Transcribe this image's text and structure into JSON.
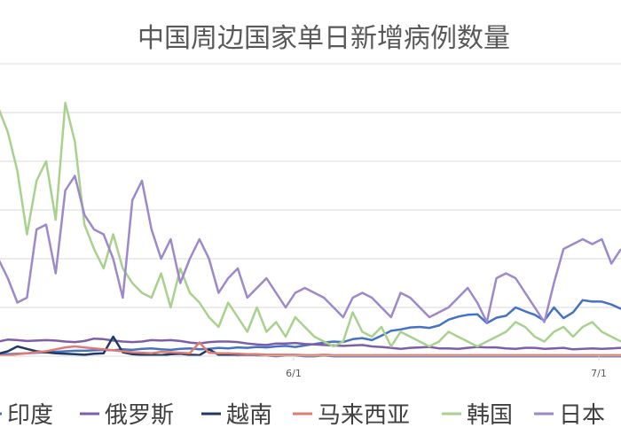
{
  "chart_data": {
    "type": "line",
    "title": "中国周边国家单日新增病例数量",
    "xlabel": "",
    "ylabel": "",
    "x_tick_labels": [
      "6/1",
      "7/1"
    ],
    "grid": true,
    "legend_position": "bottom",
    "y_axis_labels_visible": false,
    "series": [
      {
        "name": "印度",
        "color": "#4472C4",
        "values": [
          0.3,
          0.4,
          0.5,
          0.6,
          0.7,
          0.8,
          0.9,
          1.0,
          1.1,
          1.1,
          1.2,
          1.3,
          1.2,
          1.4,
          1.3,
          1.5,
          1.6,
          1.4,
          1.3,
          1.5,
          1.6,
          1.4,
          1.5,
          1.7,
          1.6,
          1.8,
          1.7,
          1.9,
          1.8,
          2.0,
          2.1,
          1.9,
          2.2,
          2.5,
          2.8,
          3.0,
          2.9,
          3.5,
          3.7,
          3.3,
          4.2,
          5.2,
          5.5,
          5.9,
          6.0,
          5.8,
          6.3,
          7.5,
          8.1,
          8.5,
          8.6,
          6.8,
          7.9,
          8.3,
          10.0,
          9.2,
          8.5,
          7.3,
          10.0,
          7.8,
          9.0,
          11.5,
          11.2,
          11.2,
          10.6,
          9.7
        ]
      },
      {
        "name": "俄罗斯",
        "color": "#7E5EA8",
        "values": [
          3.0,
          3.4,
          3.3,
          3.1,
          3.2,
          3.3,
          3.2,
          3.0,
          2.9,
          3.1,
          3.6,
          3.5,
          3.2,
          3.0,
          2.9,
          3.0,
          3.3,
          3.2,
          3.3,
          3.1,
          2.8,
          2.6,
          2.9,
          3.0,
          3.0,
          2.9,
          2.6,
          2.4,
          2.3,
          2.6,
          2.6,
          2.7,
          2.5,
          2.4,
          2.3,
          2.2,
          2.1,
          2.2,
          2.3,
          2.0,
          1.9,
          1.7,
          1.5,
          1.7,
          1.8,
          1.9,
          1.6,
          1.6,
          1.5,
          1.7,
          1.9,
          1.8,
          1.8,
          1.6,
          1.5,
          1.7,
          1.7,
          1.5,
          1.6,
          1.7,
          1.4,
          1.5,
          1.6,
          1.5,
          1.6,
          1.7
        ]
      },
      {
        "name": "越南",
        "color": "#203864",
        "values": [
          0.5,
          1.0,
          2.0,
          1.5,
          1.0,
          0.8,
          0.6,
          0.5,
          0.4,
          0.3,
          0.5,
          0.6,
          4.0,
          0.8,
          0.4,
          0.3,
          0.3,
          0.2,
          0.4,
          0.5,
          0.3,
          0.2,
          1.4,
          0.3,
          0.2,
          0.1,
          0.2,
          0.1,
          0.1,
          0.0,
          0.1,
          0.1,
          0.0,
          0.0,
          0.1,
          0.0,
          0.0,
          0.0,
          0.0,
          0.0,
          0.0,
          0.0,
          0.0,
          0.0,
          0.0,
          0.0,
          0.0,
          0.0,
          0.0,
          0.0,
          0.0,
          0.0,
          0.0,
          0.0,
          0.0,
          0.0,
          0.0,
          0.0,
          0.0,
          0.0,
          0.0,
          0.0,
          0.0,
          0.0,
          0.0,
          0.0
        ]
      },
      {
        "name": "马来西亚",
        "color": "#E07B74",
        "values": [
          0.1,
          0.2,
          0.4,
          0.6,
          0.8,
          1.0,
          1.4,
          1.8,
          2.0,
          1.8,
          1.6,
          1.4,
          1.2,
          1.0,
          0.8,
          0.7,
          0.6,
          0.9,
          0.8,
          0.7,
          0.6,
          2.8,
          0.7,
          0.6,
          0.6,
          0.5,
          0.4,
          0.4,
          0.3,
          0.3,
          0.3,
          0.3,
          0.2,
          0.2,
          0.3,
          0.2,
          0.2,
          0.2,
          0.2,
          0.2,
          0.2,
          0.2,
          0.2,
          0.2,
          0.2,
          0.2,
          0.2,
          0.2,
          0.2,
          0.2,
          0.2,
          0.2,
          0.2,
          0.2,
          0.2,
          0.2,
          0.2,
          0.2,
          0.2,
          0.2,
          0.2,
          0.2,
          0.2,
          0.2,
          0.2,
          0.2
        ]
      },
      {
        "name": "韩国",
        "color": "#A9D18E",
        "values": [
          51,
          46,
          38,
          25,
          36,
          40,
          28,
          52,
          44,
          27,
          22,
          18,
          25,
          18,
          15,
          13,
          12,
          17,
          10,
          18,
          13,
          11,
          8,
          6,
          11,
          8,
          5,
          10,
          5,
          7,
          4,
          8,
          6,
          4,
          3,
          2,
          3,
          9,
          5,
          4,
          6,
          2,
          5,
          4,
          3,
          2,
          3,
          5,
          4,
          3,
          2,
          3,
          4,
          5,
          7,
          6,
          4,
          3,
          5,
          6,
          4,
          6,
          7,
          5,
          4,
          3
        ]
      },
      {
        "name": "日本",
        "color": "#9E88CC",
        "values": [
          20,
          16,
          11,
          12,
          26,
          27,
          17,
          34,
          37,
          29,
          26,
          25,
          20,
          12,
          32,
          36,
          26,
          20,
          24,
          15,
          20,
          24,
          20,
          13,
          16,
          18,
          12,
          14,
          16,
          13,
          10,
          13,
          14,
          13,
          12,
          10,
          8,
          12,
          13,
          12,
          10,
          8,
          13,
          12,
          10,
          8,
          9,
          10,
          12,
          14,
          11,
          7,
          16,
          17,
          16,
          13,
          10,
          7,
          15,
          22,
          23,
          24,
          23,
          24,
          19,
          22
        ]
      }
    ]
  }
}
